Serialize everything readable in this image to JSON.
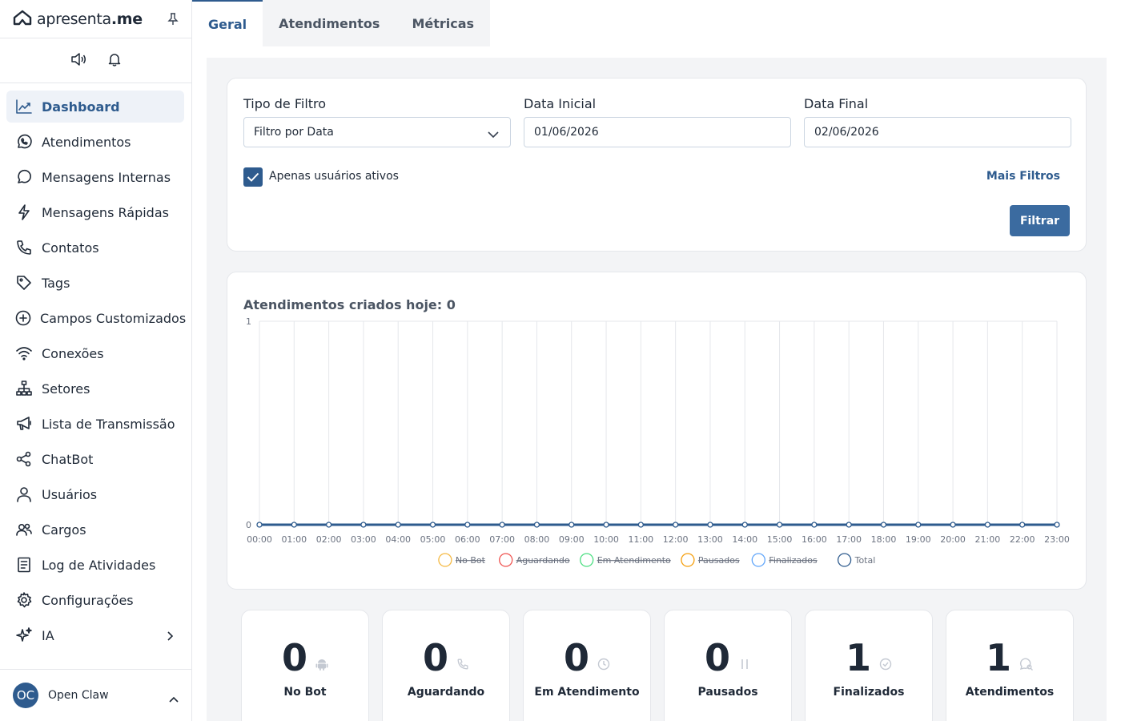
{
  "brand": {
    "name_light": "apresenta",
    "name_bold": ".me"
  },
  "sidebar": {
    "items": [
      {
        "label": "Dashboard",
        "icon": "chart-line-icon",
        "active": true
      },
      {
        "label": "Atendimentos",
        "icon": "whatsapp-icon"
      },
      {
        "label": "Mensagens Internas",
        "icon": "chat-bubble-icon"
      },
      {
        "label": "Mensagens Rápidas",
        "icon": "lightning-icon"
      },
      {
        "label": "Contatos",
        "icon": "phone-icon"
      },
      {
        "label": "Tags",
        "icon": "tag-icon"
      },
      {
        "label": "Campos Customizados",
        "icon": "plus-circle-icon"
      },
      {
        "label": "Conexões",
        "icon": "wifi-icon"
      },
      {
        "label": "Setores",
        "icon": "sitemap-icon"
      },
      {
        "label": "Lista de Transmissão",
        "icon": "megaphone-icon"
      },
      {
        "label": "ChatBot",
        "icon": "share-icon"
      },
      {
        "label": "Usuários",
        "icon": "user-icon"
      },
      {
        "label": "Cargos",
        "icon": "users-icon"
      },
      {
        "label": "Log de Atividades",
        "icon": "document-icon"
      },
      {
        "label": "Configurações",
        "icon": "gear-icon"
      },
      {
        "label": "IA",
        "icon": "sparkles-icon"
      }
    ],
    "user": {
      "initials": "OC",
      "name": "Open Claw"
    }
  },
  "tabs": [
    {
      "label": "Geral",
      "active": true
    },
    {
      "label": "Atendimentos"
    },
    {
      "label": "Métricas"
    }
  ],
  "filters": {
    "type_label": "Tipo de Filtro",
    "type_value": "Filtro por Data",
    "start_label": "Data Inicial",
    "start_value": "01/06/2026",
    "end_label": "Data Final",
    "end_value": "02/06/2026",
    "active_only_label": "Apenas usuários ativos",
    "active_only_checked": true,
    "more_filters_label": "Mais Filtros",
    "filter_button_label": "Filtrar"
  },
  "chart_data": {
    "type": "line",
    "title": "Atendimentos criados hoje: 0",
    "x": [
      "00:00",
      "01:00",
      "02:00",
      "03:00",
      "04:00",
      "05:00",
      "06:00",
      "07:00",
      "08:00",
      "09:00",
      "10:00",
      "11:00",
      "12:00",
      "13:00",
      "14:00",
      "15:00",
      "16:00",
      "17:00",
      "18:00",
      "19:00",
      "20:00",
      "21:00",
      "22:00",
      "23:00"
    ],
    "ylim": [
      0,
      1
    ],
    "yticks": [
      "0",
      "1"
    ],
    "grid": true,
    "legend_position": "bottom",
    "series": [
      {
        "name": "No Bot",
        "color": "#f5b942",
        "hidden": true,
        "values": [
          0,
          0,
          0,
          0,
          0,
          0,
          0,
          0,
          0,
          0,
          0,
          0,
          0,
          0,
          0,
          0,
          0,
          0,
          0,
          0,
          0,
          0,
          0,
          0
        ]
      },
      {
        "name": "Aguardando",
        "color": "#ef5350",
        "hidden": true,
        "values": [
          0,
          0,
          0,
          0,
          0,
          0,
          0,
          0,
          0,
          0,
          0,
          0,
          0,
          0,
          0,
          0,
          0,
          0,
          0,
          0,
          0,
          0,
          0,
          0
        ]
      },
      {
        "name": "Em Atendimento",
        "color": "#4ade80",
        "hidden": true,
        "values": [
          0,
          0,
          0,
          0,
          0,
          0,
          0,
          0,
          0,
          0,
          0,
          0,
          0,
          0,
          0,
          0,
          0,
          0,
          0,
          0,
          0,
          0,
          0,
          0
        ]
      },
      {
        "name": "Pausados",
        "color": "#f59e0b",
        "hidden": true,
        "values": [
          0,
          0,
          0,
          0,
          0,
          0,
          0,
          0,
          0,
          0,
          0,
          0,
          0,
          0,
          0,
          0,
          0,
          0,
          0,
          0,
          0,
          0,
          0,
          0
        ]
      },
      {
        "name": "Finalizados",
        "color": "#60a5fa",
        "hidden": true,
        "values": [
          0,
          0,
          0,
          0,
          0,
          0,
          0,
          0,
          0,
          0,
          0,
          0,
          0,
          0,
          0,
          0,
          0,
          0,
          0,
          0,
          0,
          0,
          0,
          0
        ]
      },
      {
        "name": "Total",
        "color": "#2e5b8e",
        "hidden": false,
        "values": [
          0,
          0,
          0,
          0,
          0,
          0,
          0,
          0,
          0,
          0,
          0,
          0,
          0,
          0,
          0,
          0,
          0,
          0,
          0,
          0,
          0,
          0,
          0,
          0
        ]
      }
    ]
  },
  "stats": [
    {
      "value": "0",
      "label": "No Bot",
      "icon": "android-icon"
    },
    {
      "value": "0",
      "label": "Aguardando",
      "icon": "phone-icon"
    },
    {
      "value": "0",
      "label": "Em Atendimento",
      "icon": "clock-icon"
    },
    {
      "value": "0",
      "label": "Pausados",
      "icon": "pause-icon"
    },
    {
      "value": "1",
      "label": "Finalizados",
      "icon": "check-circle-icon"
    },
    {
      "value": "1",
      "label": "Atendimentos",
      "icon": "search-chat-icon"
    }
  ]
}
